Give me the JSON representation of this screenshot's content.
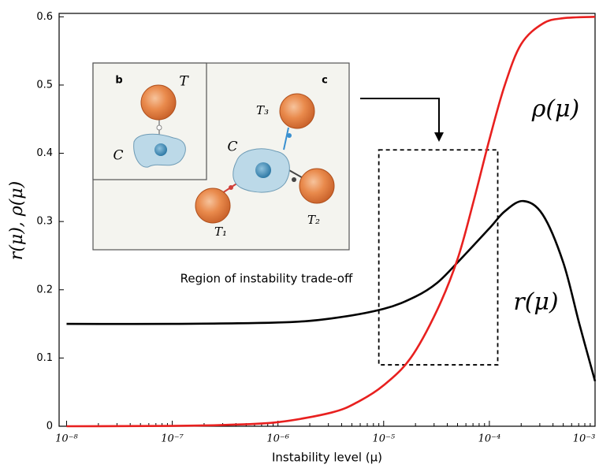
{
  "chart_data": {
    "type": "line",
    "log_x": true,
    "xlabel": "Instability level (μ)",
    "ylabel": "r(μ), ρ(μ)",
    "xlim": [
      8.5e-09,
      0.001
    ],
    "ylim": [
      0,
      0.605
    ],
    "xticks": [
      {
        "value": 1e-08,
        "label": "10⁻⁸"
      },
      {
        "value": 1e-07,
        "label": "10⁻⁷"
      },
      {
        "value": 1e-06,
        "label": "10⁻⁶"
      },
      {
        "value": 1e-05,
        "label": "10⁻⁵"
      },
      {
        "value": 0.0001,
        "label": "10⁻⁴"
      },
      {
        "value": 0.001,
        "label": "10⁻³"
      }
    ],
    "yticks": [
      0,
      0.1,
      0.2,
      0.3,
      0.4,
      0.5,
      0.6
    ],
    "grid": false,
    "series": [
      {
        "name": "r(μ)",
        "color": "#000000",
        "x": [
          1e-08,
          1e-07,
          1e-06,
          3.2e-06,
          1e-05,
          2e-05,
          3.2e-05,
          5e-05,
          0.0001,
          0.00014,
          0.00021,
          0.00032,
          0.0005,
          0.00071,
          0.001
        ],
        "values": [
          0.15,
          0.15,
          0.152,
          0.158,
          0.172,
          0.19,
          0.21,
          0.24,
          0.29,
          0.315,
          0.33,
          0.31,
          0.24,
          0.15,
          0.066
        ]
      },
      {
        "name": "ρ(μ)",
        "color": "#e8201f",
        "x": [
          1e-08,
          1e-07,
          3.2e-07,
          1e-06,
          3.2e-06,
          5.6e-06,
          1e-05,
          1.8e-05,
          3.2e-05,
          5e-05,
          7.1e-05,
          0.0001,
          0.00014,
          0.0002,
          0.00032,
          0.0005,
          0.001
        ],
        "values": [
          0,
          0.0005,
          0.002,
          0.006,
          0.02,
          0.035,
          0.06,
          0.1,
          0.17,
          0.245,
          0.33,
          0.42,
          0.5,
          0.56,
          0.59,
          0.598,
          0.6
        ]
      }
    ],
    "region": {
      "label": "Region of instability trade-off",
      "x": [
        9e-06,
        0.00012
      ],
      "y": [
        0.09,
        0.405
      ]
    },
    "inset_labels": [
      "b",
      "c",
      "T",
      "C",
      "T₃",
      "C",
      "T₁",
      "T₂"
    ]
  }
}
